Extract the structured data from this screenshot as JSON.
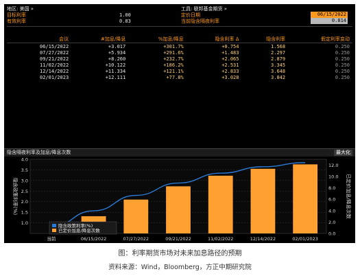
{
  "header": {
    "region_label": "地区: 美国 »",
    "target_rate_label": "目标利率",
    "target_rate_value": "1.00",
    "effective_rate_label": "有效利率",
    "effective_rate_value": "0.83",
    "instrument_label": "工具: 联邦基金期货 »",
    "pricing_date_label": "定价日期",
    "pricing_date_value": "06/15/2022",
    "current_implied_label": "当前隐含隔夜利率",
    "current_implied_value": "0.814"
  },
  "table": {
    "columns": [
      "会议",
      "#加息/降息",
      "%加息/降息",
      "隐含利率 Δ",
      "隐含利率",
      "假定利率变动"
    ],
    "rows": [
      [
        "06/15/2022",
        "+3.017",
        "+301.7%",
        "+0.754",
        "1.568",
        "0.250"
      ],
      [
        "07/27/2022",
        "+5.934",
        "+291.6%",
        "+1.483",
        "2.297",
        "0.250"
      ],
      [
        "09/21/2022",
        "+8.260",
        "+232.7%",
        "+2.065",
        "2.879",
        "0.250"
      ],
      [
        "11/02/2022",
        "+10.122",
        "+186.2%",
        "+2.531",
        "3.345",
        "0.250"
      ],
      [
        "12/14/2022",
        "+11.334",
        "+121.1%",
        "+2.833",
        "3.648",
        "0.250"
      ],
      [
        "02/01/2023",
        "+12.111",
        "+77.8%",
        "+3.028",
        "3.842",
        "0.250"
      ]
    ]
  },
  "chart_panel": {
    "title": "隐含隔夜利率及加息/降息次数",
    "maximize_label": "最大化",
    "left_axis_label": "隐含政策利率(%)",
    "right_axis_label": "已定价加息/降息次数",
    "legend_line": "隐含政策利率(%)",
    "legend_bar": "已定价加息/降息次数"
  },
  "chart_data": {
    "type": "bar",
    "categories": [
      "当前",
      "06/15/2022",
      "07/27/2022",
      "09/21/2022",
      "11/02/2022",
      "12/14/2022",
      "02/01/2023"
    ],
    "series": [
      {
        "name": "已定价加息/降息次数",
        "type": "bar",
        "axis": "right",
        "values": [
          0,
          3.017,
          5.934,
          8.26,
          10.122,
          11.334,
          12.111
        ],
        "color": "#ffa030"
      },
      {
        "name": "隐含政策利率(%)",
        "type": "line",
        "axis": "left",
        "values": [
          0.814,
          1.568,
          2.297,
          2.879,
          3.345,
          3.648,
          3.842
        ],
        "color": "#2a7bd6"
      }
    ],
    "left_ylim": [
      0.5,
      4.0
    ],
    "left_ticks": [
      "1.0",
      "1.5",
      "2.0",
      "2.5",
      "3.0",
      "3.5",
      "4.0"
    ],
    "right_ylim": [
      0,
      13.0
    ],
    "right_ticks": [
      "0.0",
      "2.0",
      "4.0",
      "6.0",
      "8.0",
      "10.0",
      "12.0"
    ],
    "grid": true,
    "legend": "bottom-left"
  },
  "colors": {
    "terminal_bg": "#000000",
    "accent_orange": "#ff9a1f",
    "bar_orange": "#ffa030",
    "line_blue": "#2a7bd6"
  },
  "caption": {
    "title": "图：利率期货市场对未来加息路径的预期",
    "source": "资料来源：Wind，Bloomberg，方正中期研究院"
  }
}
